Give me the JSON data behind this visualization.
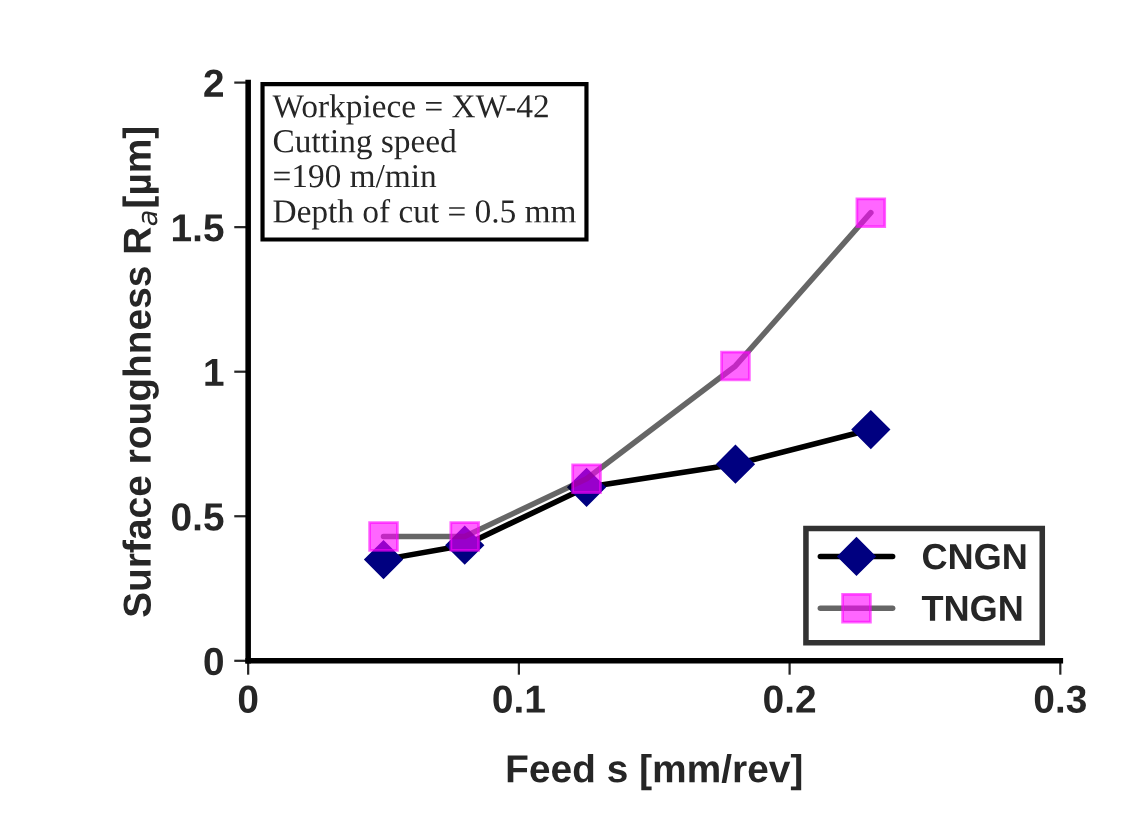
{
  "chart_data": {
    "type": "line",
    "xlabel": "Feed s [mm/rev]",
    "ylabel": "Surface roughness R$_{a}$[µm]",
    "x": [
      0.05,
      0.08,
      0.125,
      0.18,
      0.23
    ],
    "series": [
      {
        "name": "CNGN",
        "color": "#000080",
        "marker": "diamond",
        "values": [
          0.35,
          0.4,
          0.6,
          0.68,
          0.8
        ]
      },
      {
        "name": "TNGN",
        "color": "#ff00ff",
        "marker": "square",
        "values": [
          0.43,
          0.43,
          0.63,
          1.02,
          1.55
        ]
      }
    ],
    "xlim": [
      0,
      0.3
    ],
    "xticks": [
      0,
      0.1,
      0.2,
      0.3
    ],
    "ylim": [
      0,
      2
    ],
    "yticks": [
      0,
      0.5,
      1,
      1.5,
      2
    ],
    "grid": false,
    "legend": "bottom right",
    "line_style": "solid",
    "annotations": [
      "Workpiece = XW-42\nCutting speed\n=190 m/min\nDepth of cut = 0.5 mm"
    ]
  }
}
